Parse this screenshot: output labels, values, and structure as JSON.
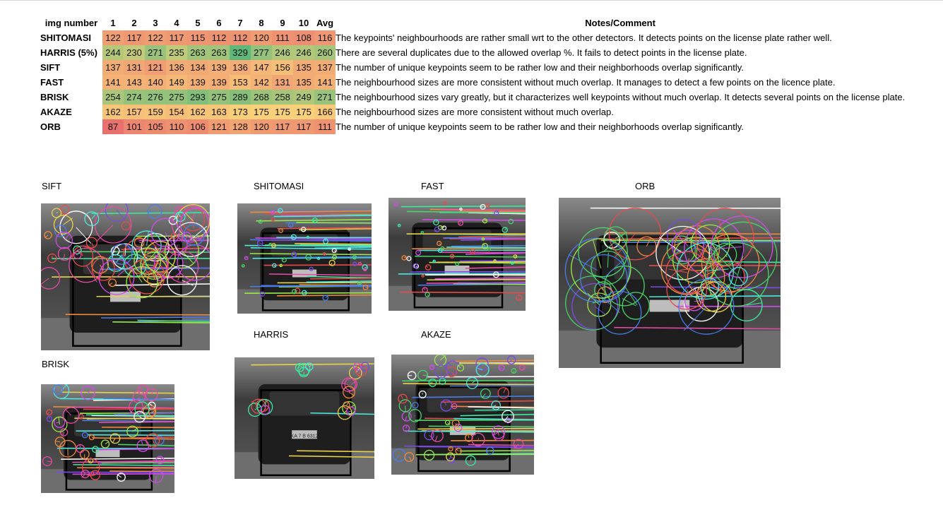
{
  "table": {
    "header": {
      "label": "img number",
      "columns": [
        "1",
        "2",
        "3",
        "4",
        "5",
        "6",
        "7",
        "8",
        "9",
        "10",
        "Avg"
      ],
      "notes": "Notes/Comment"
    },
    "rows": [
      {
        "detector": "SHITOMASI",
        "values": [
          122,
          117,
          122,
          117,
          115,
          112,
          112,
          120,
          111,
          108,
          116
        ],
        "note": "The keypoints' neighbourhoods are rather small wrt to the other detectors. It detects  points on the license plate rather well."
      },
      {
        "detector": "HARRIS (5%)",
        "values": [
          244,
          230,
          271,
          235,
          263,
          263,
          329,
          277,
          246,
          246,
          260
        ],
        "note": "There are several duplicates due to the allowed overlap %. It fails to detect points in the license plate."
      },
      {
        "detector": "SIFT",
        "values": [
          137,
          131,
          121,
          136,
          134,
          139,
          136,
          147,
          156,
          135,
          137
        ],
        "note": "The number of unique keypoints seem to be rather low and their neighborhoods overlap significantly."
      },
      {
        "detector": "FAST",
        "values": [
          141,
          143,
          140,
          149,
          139,
          139,
          153,
          142,
          131,
          135,
          141
        ],
        "note": "The neighbourhood sizes are more consistent without much overlap. It manages to detect a few points on the licence plate."
      },
      {
        "detector": "BRISK",
        "values": [
          254,
          274,
          276,
          275,
          293,
          275,
          289,
          268,
          258,
          249,
          271
        ],
        "note": "The neighbourhood sizes vary greatly, but it characterizes well keypoints without much overlap. It detects several points on the license plate."
      },
      {
        "detector": "AKAZE",
        "values": [
          162,
          157,
          159,
          154,
          162,
          163,
          173,
          175,
          175,
          175,
          166
        ],
        "note": "The neighbourhood sizes are more consistent without much overlap."
      },
      {
        "detector": "ORB",
        "values": [
          87,
          101,
          105,
          110,
          106,
          121,
          128,
          120,
          117,
          117,
          111
        ],
        "note": "The number of unique keypoints seem to be rather low and their neighborhoods overlap significantly."
      }
    ],
    "scale": {
      "min": 87,
      "max": 329,
      "colors": {
        "low": "#e8706e",
        "mid": "#f9d47a",
        "high": "#5db87a"
      }
    }
  },
  "panels": [
    {
      "id": "sift",
      "caption": "SIFT",
      "style": "large-circles",
      "seed": 3
    },
    {
      "id": "shitomasi",
      "caption": "SHITOMASI",
      "style": "lines-small",
      "seed": 7
    },
    {
      "id": "fast",
      "caption": "FAST",
      "style": "lines-small",
      "seed": 11
    },
    {
      "id": "orb",
      "caption": "ORB",
      "style": "big-circles",
      "seed": 19
    },
    {
      "id": "brisk",
      "caption": "BRISK",
      "style": "lines-mixed",
      "seed": 23
    },
    {
      "id": "harris",
      "caption": "HARRIS",
      "style": "sparse",
      "seed": 29,
      "plate": "KA 7 B 6312"
    },
    {
      "id": "akaze",
      "caption": "AKAZE",
      "style": "lines-medium",
      "seed": 31
    }
  ]
}
